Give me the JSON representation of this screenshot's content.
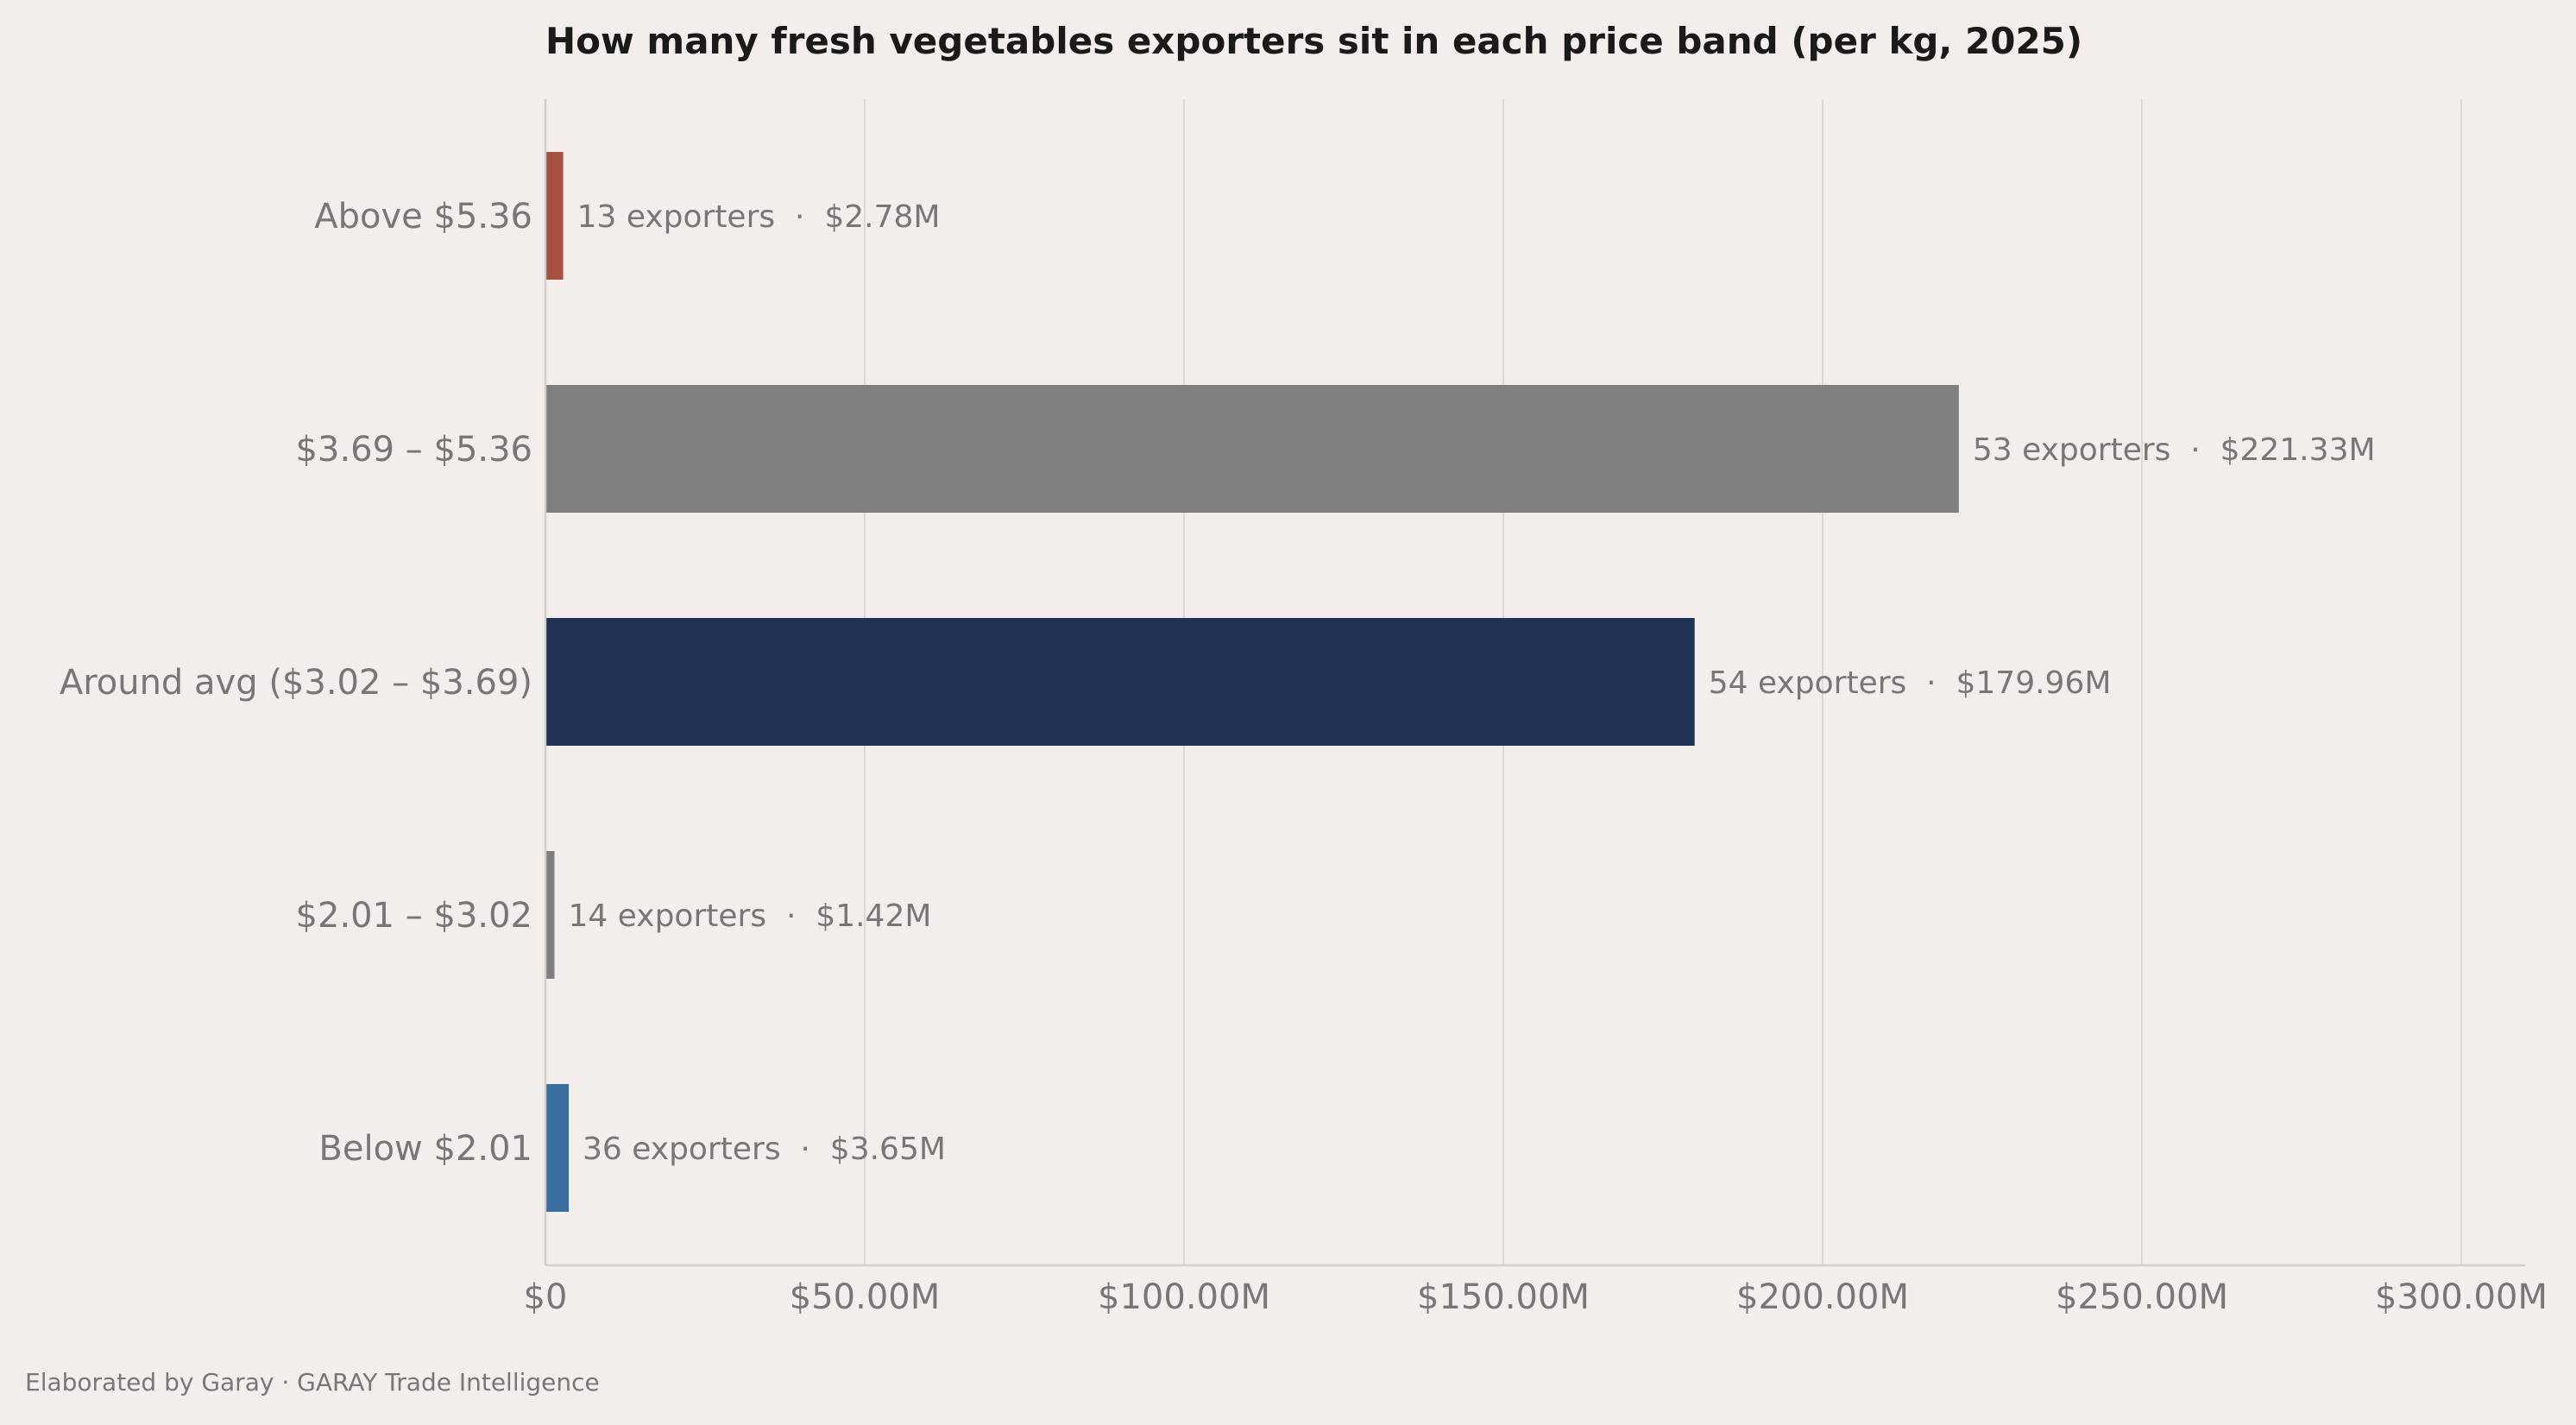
{
  "chart_data": {
    "type": "bar",
    "orientation": "horizontal",
    "title": "How many fresh vegetables exporters sit in each price band (per kg, 2025)",
    "xlabel": "",
    "ylabel": "",
    "categories": [
      "Above $5.36",
      "$3.69 – $5.36",
      "Around avg ($3.02 – $3.69)",
      "$2.01 – $3.02",
      "Below $2.01"
    ],
    "values": [
      2.78,
      221.33,
      179.96,
      1.42,
      3.65
    ],
    "unit": "M USD",
    "exporters": [
      13,
      53,
      54,
      14,
      36
    ],
    "data_labels": [
      "13 exporters  ·  $2.78M",
      "53 exporters  ·  $221.33M",
      "54 exporters  ·  $179.96M",
      "14 exporters  ·  $1.42M",
      "36 exporters  ·  $3.65M"
    ],
    "colors": [
      "#a85040",
      "#7f7f7f",
      "#1e3355",
      "#7f7f7f",
      "#3a6e9e"
    ],
    "xlim": [
      0,
      310
    ],
    "xticks": [
      0,
      50,
      100,
      150,
      200,
      250,
      300
    ],
    "xtick_labels": [
      "$0",
      "$50.00M",
      "$100.00M",
      "$150.00M",
      "$200.00M",
      "$250.00M",
      "$300.00M"
    ],
    "grid": "vertical",
    "legend": "none"
  },
  "footer": {
    "credit": "Elaborated by Garay  ·  GARAY Trade Intelligence"
  },
  "colors": {
    "background": "#f3eeeb",
    "grid": "#dcd9d6",
    "text_muted": "#7a7676",
    "text_title": "#1a1a1a"
  }
}
